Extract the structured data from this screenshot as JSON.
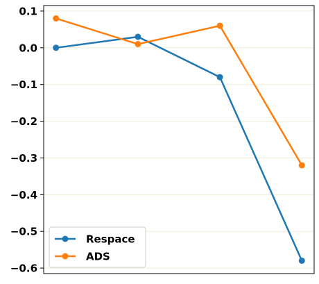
{
  "chart_data": {
    "type": "line",
    "x": [
      1,
      2,
      3,
      4
    ],
    "series": [
      {
        "name": "Respace",
        "color": "#1f77b4",
        "values": [
          0.0,
          0.03,
          -0.08,
          -0.58
        ]
      },
      {
        "name": "ADS",
        "color": "#ff7f0e",
        "values": [
          0.08,
          0.01,
          0.06,
          -0.32
        ]
      }
    ],
    "yticks": [
      0.1,
      0.0,
      -0.1,
      -0.2,
      -0.3,
      -0.4,
      -0.5,
      -0.6
    ],
    "ytick_labels": [
      "0.1",
      "0.0",
      "−0.1",
      "−0.2",
      "−0.3",
      "−0.4",
      "−0.5",
      "−0.6"
    ],
    "ylim": [
      -0.615,
      0.115
    ],
    "xlim": [
      0.85,
      4.15
    ],
    "grid": "horizontal",
    "grid_color": "#f0ecd6",
    "legend_position": "lower-left"
  }
}
